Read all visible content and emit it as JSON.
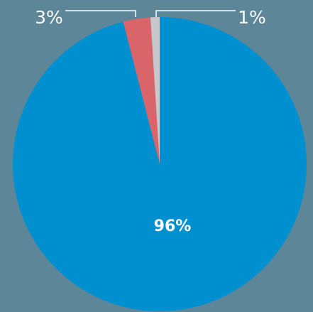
{
  "chart_data": {
    "type": "pie",
    "start_angle_deg": 0,
    "direction": "clockwise",
    "slices": [
      {
        "label": "96%",
        "value": 96,
        "color": "#0090cf",
        "label_position": "inside"
      },
      {
        "label": "3%",
        "value": 3,
        "color": "#d9646a",
        "label_position": "outside-left"
      },
      {
        "label": "1%",
        "value": 1,
        "color": "#c8c8cc",
        "label_position": "outside-right"
      }
    ],
    "background": "#5d8799"
  }
}
